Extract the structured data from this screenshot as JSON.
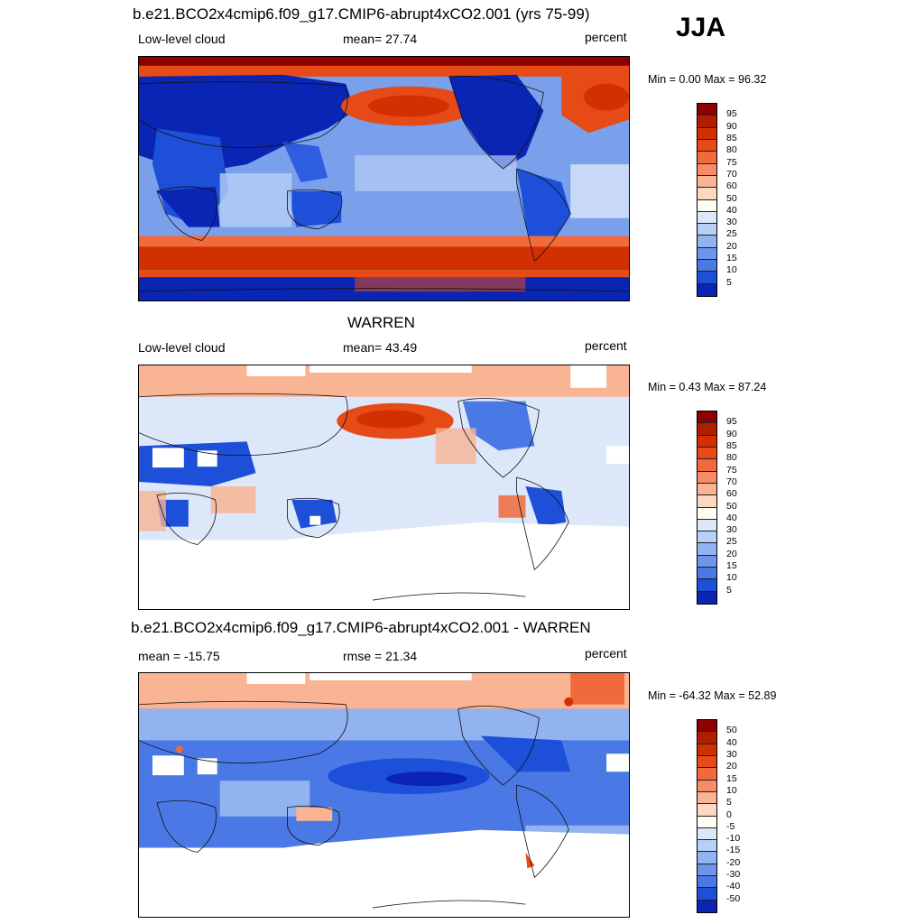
{
  "season": "JJA",
  "panels": [
    {
      "title": "b.e21.BCO2x4cmip6.f09_g17.CMIP6-abrupt4xCO2.001 (yrs 75-99)",
      "left_label": "Low-level cloud",
      "center_label": "mean=  27.74",
      "units": "percent",
      "minmax": "Min =   0.00 Max =  96.32"
    },
    {
      "title": "WARREN",
      "left_label": "Low-level cloud",
      "center_label": "mean=  43.49",
      "units": "percent",
      "minmax": "Min =   0.43 Max =  87.24"
    },
    {
      "title": "b.e21.BCO2x4cmip6.f09_g17.CMIP6-abrupt4xCO2.001 - WARREN",
      "left_label": "mean = -15.75",
      "center_label": "rmse =  21.34",
      "units": "percent",
      "minmax": "Min = -64.32 Max =  52.89"
    }
  ],
  "colorbars": {
    "absolute": {
      "labels": [
        "95",
        "90",
        "85",
        "80",
        "75",
        "70",
        "60",
        "50",
        "40",
        "30",
        "25",
        "20",
        "15",
        "10",
        "5"
      ],
      "colors": [
        "#8b0000",
        "#b01e00",
        "#d23000",
        "#e64a16",
        "#f06a3c",
        "#f78c66",
        "#f9b493",
        "#fbd8c2",
        "#fffef2",
        "#dce7fa",
        "#b8cff6",
        "#91b3f0",
        "#6d96ea",
        "#4a78e4",
        "#1d4fd8",
        "#0a24b4"
      ]
    },
    "difference": {
      "labels": [
        "50",
        "40",
        "30",
        "20",
        "15",
        "10",
        "5",
        "0",
        "-5",
        "-10",
        "-15",
        "-20",
        "-30",
        "-40",
        "-50"
      ],
      "colors": [
        "#8b0000",
        "#b01e00",
        "#d23000",
        "#e64a16",
        "#f06a3c",
        "#f78c66",
        "#f9b493",
        "#fbd8c2",
        "#fffef2",
        "#dce7fa",
        "#b8cff6",
        "#91b3f0",
        "#6d96ea",
        "#4a78e4",
        "#1d4fd8",
        "#0a24b4"
      ]
    }
  }
}
